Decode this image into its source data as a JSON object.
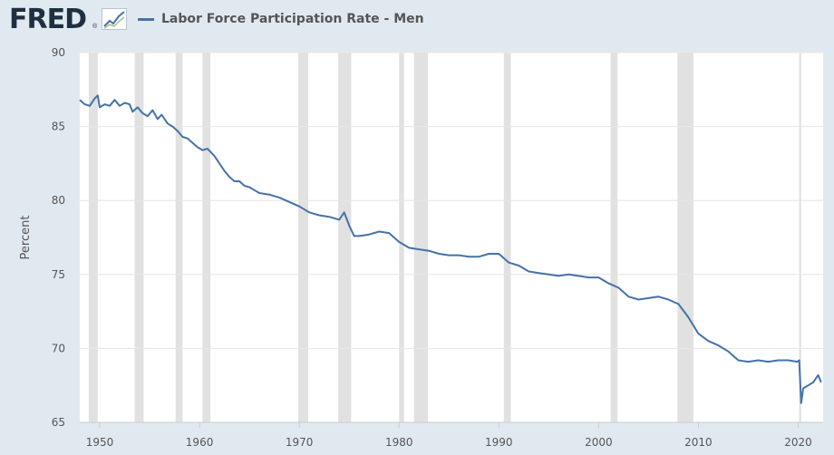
{
  "header": {
    "logo_text": "FRED",
    "logo_mark": "®",
    "graph_icon": "line-graph-icon",
    "series_label": "Labor Force Participation Rate - Men"
  },
  "colors": {
    "background": "#e1e9f0",
    "plot_bg": "#ffffff",
    "series": "#4572a7",
    "recession": "#e1e1e1",
    "grid": "#e6e6e6"
  },
  "chart_data": {
    "type": "line",
    "title": "",
    "xlabel": "",
    "ylabel": "Percent",
    "xlim": [
      1948.0,
      2022.5
    ],
    "ylim": [
      65,
      90
    ],
    "yticks": [
      65,
      70,
      75,
      80,
      85,
      90
    ],
    "xticks": [
      1950,
      1960,
      1970,
      1980,
      1990,
      2000,
      2010,
      2020
    ],
    "grid": "horizontal",
    "recessions": [
      [
        1948.9,
        1949.8
      ],
      [
        1953.5,
        1954.4
      ],
      [
        1957.6,
        1958.3
      ],
      [
        1960.3,
        1961.1
      ],
      [
        1969.9,
        1970.9
      ],
      [
        1973.9,
        1975.2
      ],
      [
        1980.0,
        1980.5
      ],
      [
        1981.5,
        1982.9
      ],
      [
        1990.5,
        1991.2
      ],
      [
        2001.2,
        2001.9
      ],
      [
        2007.9,
        2009.5
      ],
      [
        2020.1,
        2020.3
      ]
    ],
    "series": [
      {
        "name": "Labor Force Participation Rate - Men",
        "x": [
          1948.0,
          1948.5,
          1949.0,
          1949.5,
          1949.8,
          1950.0,
          1950.5,
          1951.0,
          1951.5,
          1952.0,
          1952.5,
          1953.0,
          1953.3,
          1953.8,
          1954.3,
          1954.8,
          1955.3,
          1955.8,
          1956.2,
          1956.8,
          1957.3,
          1957.8,
          1958.3,
          1958.8,
          1959.3,
          1959.8,
          1960.3,
          1960.8,
          1961.5,
          1962.0,
          1962.5,
          1963.0,
          1963.5,
          1964.0,
          1964.5,
          1965.0,
          1965.5,
          1966.0,
          1967.0,
          1968.0,
          1969.0,
          1970.0,
          1971.0,
          1972.0,
          1973.0,
          1974.0,
          1974.5,
          1975.0,
          1975.5,
          1976.0,
          1977.0,
          1978.0,
          1979.0,
          1980.0,
          1981.0,
          1982.0,
          1983.0,
          1984.0,
          1985.0,
          1986.0,
          1987.0,
          1988.0,
          1989.0,
          1990.0,
          1991.0,
          1992.0,
          1993.0,
          1994.0,
          1995.0,
          1996.0,
          1997.0,
          1998.0,
          1999.0,
          2000.0,
          2001.0,
          2002.0,
          2003.0,
          2004.0,
          2005.0,
          2006.0,
          2007.0,
          2008.0,
          2009.0,
          2010.0,
          2011.0,
          2012.0,
          2013.0,
          2014.0,
          2015.0,
          2016.0,
          2017.0,
          2018.0,
          2019.0,
          2019.9,
          2020.1,
          2020.3,
          2020.5,
          2021.0,
          2021.5,
          2022.0,
          2022.3
        ],
        "y": [
          86.8,
          86.5,
          86.4,
          86.9,
          87.1,
          86.3,
          86.5,
          86.4,
          86.8,
          86.4,
          86.6,
          86.5,
          86.0,
          86.3,
          85.9,
          85.7,
          86.1,
          85.5,
          85.8,
          85.2,
          85.0,
          84.7,
          84.3,
          84.2,
          83.9,
          83.6,
          83.4,
          83.5,
          83.0,
          82.5,
          82.0,
          81.6,
          81.3,
          81.3,
          81.0,
          80.9,
          80.7,
          80.5,
          80.4,
          80.2,
          79.9,
          79.6,
          79.2,
          79.0,
          78.9,
          78.7,
          79.2,
          78.3,
          77.6,
          77.6,
          77.7,
          77.9,
          77.8,
          77.2,
          76.8,
          76.7,
          76.6,
          76.4,
          76.3,
          76.3,
          76.2,
          76.2,
          76.4,
          76.4,
          75.8,
          75.6,
          75.2,
          75.1,
          75.0,
          74.9,
          75.0,
          74.9,
          74.8,
          74.8,
          74.4,
          74.1,
          73.5,
          73.3,
          73.4,
          73.5,
          73.3,
          73.0,
          72.1,
          71.0,
          70.5,
          70.2,
          69.8,
          69.2,
          69.1,
          69.2,
          69.1,
          69.2,
          69.2,
          69.1,
          69.2,
          66.3,
          67.3,
          67.5,
          67.7,
          68.2,
          67.7
        ]
      }
    ]
  }
}
